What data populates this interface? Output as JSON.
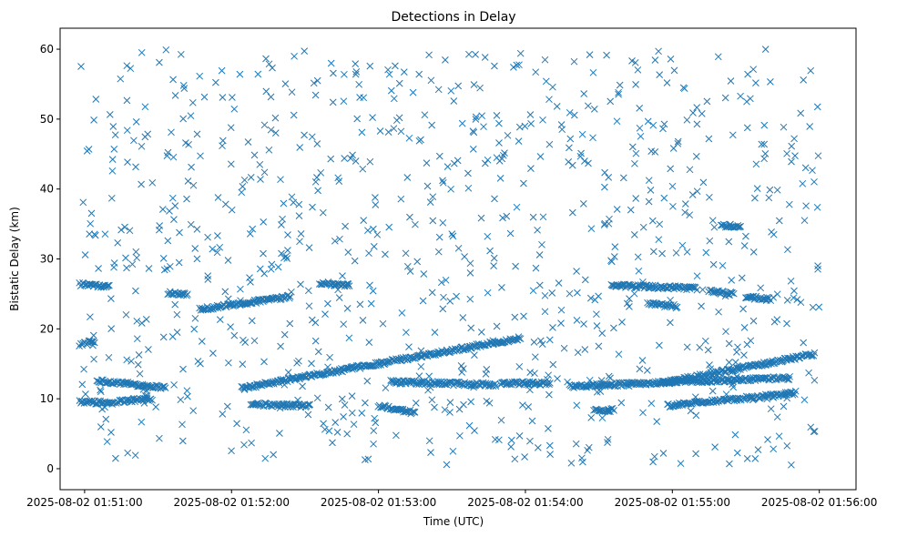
{
  "chart_data": {
    "type": "scatter",
    "title": "Detections in Delay",
    "xlabel": "Time (UTC)",
    "ylabel": "Bistatic Delay (km)",
    "marker": "x",
    "color": "#1f77b4",
    "grid": false,
    "x_range": [
      "2025-08-02 01:50:50",
      "2025-08-02 01:56:15"
    ],
    "ylim": [
      -3,
      63
    ],
    "x_ticks": [
      "2025-08-02 01:51:00",
      "2025-08-02 01:52:00",
      "2025-08-02 01:53:00",
      "2025-08-02 01:54:00",
      "2025-08-02 01:55:00",
      "2025-08-02 01:56:00"
    ],
    "y_ticks": [
      0,
      10,
      20,
      30,
      40,
      50,
      60
    ],
    "tracks": [
      {
        "start": "2025-08-02 01:50:58",
        "end": "2025-08-02 01:51:04",
        "delay_start": 17.8,
        "delay_end": 18.2
      },
      {
        "start": "2025-08-02 01:50:58",
        "end": "2025-08-02 01:51:10",
        "delay_start": 26.4,
        "delay_end": 26.0
      },
      {
        "start": "2025-08-02 01:50:58",
        "end": "2025-08-02 01:51:12",
        "delay_start": 9.6,
        "delay_end": 9.4
      },
      {
        "start": "2025-08-02 01:51:05",
        "end": "2025-08-02 01:51:33",
        "delay_start": 12.6,
        "delay_end": 11.6
      },
      {
        "start": "2025-08-02 01:51:13",
        "end": "2025-08-02 01:51:27",
        "delay_start": 9.6,
        "delay_end": 10.0
      },
      {
        "start": "2025-08-02 01:51:34",
        "end": "2025-08-02 01:51:42",
        "delay_start": 25.2,
        "delay_end": 25.0
      },
      {
        "start": "2025-08-02 01:51:47",
        "end": "2025-08-02 01:52:24",
        "delay_start": 22.8,
        "delay_end": 24.6
      },
      {
        "start": "2025-08-02 01:52:04",
        "end": "2025-08-02 01:53:58",
        "delay_start": 11.5,
        "delay_end": 18.7
      },
      {
        "start": "2025-08-02 01:52:08",
        "end": "2025-08-02 01:52:32",
        "delay_start": 9.2,
        "delay_end": 9.0
      },
      {
        "start": "2025-08-02 01:52:36",
        "end": "2025-08-02 01:52:48",
        "delay_start": 26.6,
        "delay_end": 26.2
      },
      {
        "start": "2025-08-02 01:53:00",
        "end": "2025-08-02 01:53:15",
        "delay_start": 9.0,
        "delay_end": 8.0
      },
      {
        "start": "2025-08-02 01:53:05",
        "end": "2025-08-02 01:53:48",
        "delay_start": 12.4,
        "delay_end": 12.0
      },
      {
        "start": "2025-08-02 01:53:50",
        "end": "2025-08-02 01:54:10",
        "delay_start": 12.2,
        "delay_end": 12.2
      },
      {
        "start": "2025-08-02 01:54:18",
        "end": "2025-08-02 01:55:48",
        "delay_start": 11.8,
        "delay_end": 13.0
      },
      {
        "start": "2025-08-02 01:54:28",
        "end": "2025-08-02 01:54:36",
        "delay_start": 8.4,
        "delay_end": 8.4
      },
      {
        "start": "2025-08-02 01:54:35",
        "end": "2025-08-02 01:55:10",
        "delay_start": 26.2,
        "delay_end": 25.8
      },
      {
        "start": "2025-08-02 01:54:50",
        "end": "2025-08-02 01:55:02",
        "delay_start": 23.6,
        "delay_end": 23.2
      },
      {
        "start": "2025-08-02 01:54:58",
        "end": "2025-08-02 01:55:50",
        "delay_start": 9.0,
        "delay_end": 10.8
      },
      {
        "start": "2025-08-02 01:54:55",
        "end": "2025-08-02 01:55:58",
        "delay_start": 12.2,
        "delay_end": 16.4
      },
      {
        "start": "2025-08-02 01:55:15",
        "end": "2025-08-02 01:55:25",
        "delay_start": 25.4,
        "delay_end": 25.0
      },
      {
        "start": "2025-08-02 01:55:30",
        "end": "2025-08-02 01:55:40",
        "delay_start": 24.6,
        "delay_end": 24.2
      },
      {
        "start": "2025-08-02 01:55:20",
        "end": "2025-08-02 01:55:28",
        "delay_start": 34.8,
        "delay_end": 34.6
      }
    ],
    "noise": {
      "count": 900,
      "start": "2025-08-02 01:50:58",
      "end": "2025-08-02 01:56:00",
      "delay_min": 0.5,
      "delay_max": 60
    }
  }
}
